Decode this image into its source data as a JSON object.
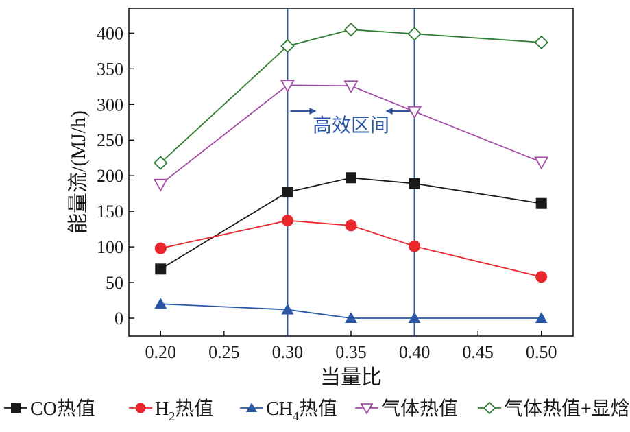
{
  "chart_data": {
    "type": "line",
    "xlabel": "当量比",
    "ylabel": "能量流/(MJ/h)",
    "xlim": [
      0.175,
      0.525
    ],
    "ylim": [
      -25,
      435
    ],
    "x_ticks": [
      "0.20",
      "0.25",
      "0.30",
      "0.35",
      "0.40",
      "0.45",
      "0.50"
    ],
    "y_ticks": [
      "0",
      "50",
      "100",
      "150",
      "200",
      "250",
      "300",
      "350",
      "400"
    ],
    "x": [
      0.2,
      0.3,
      0.35,
      0.4,
      0.5
    ],
    "series": [
      {
        "name": "CO热值",
        "color": "#1a1a1a",
        "marker": "square-filled",
        "values": [
          69,
          177,
          197,
          189,
          161
        ]
      },
      {
        "name": "H2热值",
        "color": "#e8262b",
        "marker": "circle-filled",
        "values": [
          98,
          137,
          130,
          101,
          58
        ]
      },
      {
        "name": "CH4热值",
        "color": "#2a56a6",
        "marker": "triangle-up-filled",
        "values": [
          20,
          12,
          0,
          0,
          0
        ]
      },
      {
        "name": "气体热值",
        "color": "#a44ca8",
        "marker": "triangle-down-open",
        "values": [
          188,
          327,
          326,
          290,
          219
        ]
      },
      {
        "name": "气体热值+显焓",
        "color": "#2e7d32",
        "marker": "diamond-open",
        "values": [
          218,
          382,
          405,
          399,
          387
        ]
      }
    ],
    "annotations": {
      "region_label": "高效区间",
      "region_bounds": [
        0.3,
        0.4
      ],
      "line_color": "#2a56a6"
    },
    "legend": {
      "placement": "bottom",
      "items": [
        {
          "label_main": "CO热值",
          "label_pre": "",
          "label_sub": "",
          "label_post": ""
        },
        {
          "label_main": "",
          "label_pre": "H",
          "label_sub": "2",
          "label_post": "热值"
        },
        {
          "label_main": "",
          "label_pre": "CH",
          "label_sub": "4",
          "label_post": "热值"
        },
        {
          "label_main": "气体热值",
          "label_pre": "",
          "label_sub": "",
          "label_post": ""
        },
        {
          "label_main": "气体热值+显焓",
          "label_pre": "",
          "label_sub": "",
          "label_post": ""
        }
      ]
    },
    "grid": false
  }
}
